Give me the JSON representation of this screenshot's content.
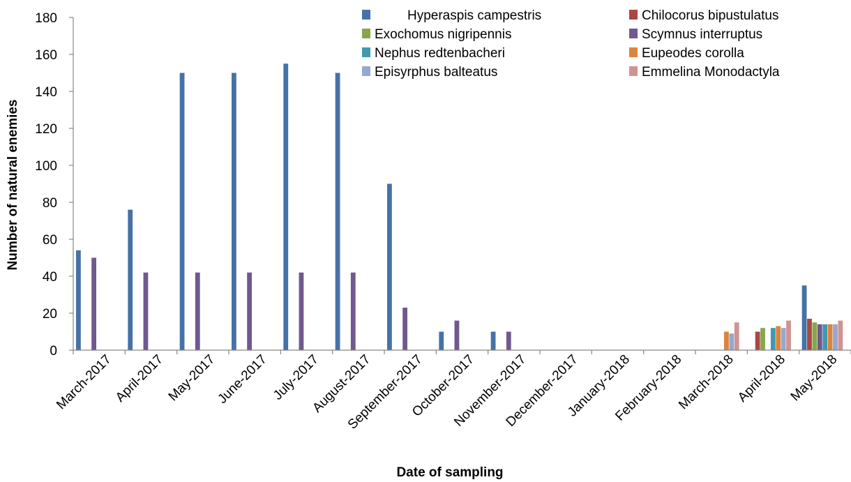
{
  "chart_data": {
    "type": "bar",
    "xlabel": "Date of sampling",
    "ylabel": "Number of natural enemies",
    "ylim": [
      0,
      180
    ],
    "yticks": [
      0,
      20,
      40,
      60,
      80,
      100,
      120,
      140,
      160,
      180
    ],
    "grid": false,
    "legend_position": "top-right",
    "categories": [
      "March-2017",
      "April-2017",
      "May-2017",
      "June-2017",
      "July-2017",
      "August-2017",
      "September-2017",
      "October-2017",
      "November-2017",
      "December-2017",
      "January-2018",
      "February-2018",
      "March-2018",
      "April-2018",
      "May-2018"
    ],
    "series": [
      {
        "name": "Hyperaspis campestris",
        "color": "#4572A7",
        "values": [
          54,
          76,
          150,
          150,
          155,
          150,
          90,
          10,
          10,
          0,
          0,
          0,
          0,
          0,
          35
        ]
      },
      {
        "name": "Chilocorus bipustulatus",
        "color": "#AA4643",
        "values": [
          0,
          0,
          0,
          0,
          0,
          0,
          0,
          0,
          0,
          0,
          0,
          0,
          0,
          10,
          17
        ]
      },
      {
        "name": "Exochomus nigripennis",
        "color": "#89A54E",
        "values": [
          0,
          0,
          0,
          0,
          0,
          0,
          0,
          0,
          0,
          0,
          0,
          0,
          0,
          12,
          15
        ]
      },
      {
        "name": "Scymnus interruptus",
        "color": "#71588F",
        "values": [
          50,
          42,
          42,
          42,
          42,
          42,
          23,
          16,
          10,
          0,
          0,
          0,
          0,
          0,
          14
        ]
      },
      {
        "name": "Nephus redtenbacheri",
        "color": "#4198AF",
        "values": [
          0,
          0,
          0,
          0,
          0,
          0,
          0,
          0,
          0,
          0,
          0,
          0,
          0,
          12,
          14
        ]
      },
      {
        "name": "Eupeodes corolla",
        "color": "#DB843D",
        "values": [
          0,
          0,
          0,
          0,
          0,
          0,
          0,
          0,
          0,
          0,
          0,
          0,
          10,
          13,
          14
        ]
      },
      {
        "name": "Episyrphus balteatus",
        "color": "#93A9CF",
        "values": [
          0,
          0,
          0,
          0,
          0,
          0,
          0,
          0,
          0,
          0,
          0,
          0,
          9,
          12,
          14
        ]
      },
      {
        "name": "Emmelina Monodactyla",
        "color": "#D19392",
        "values": [
          0,
          0,
          0,
          0,
          0,
          0,
          0,
          0,
          0,
          0,
          0,
          0,
          15,
          16,
          16
        ]
      }
    ]
  }
}
